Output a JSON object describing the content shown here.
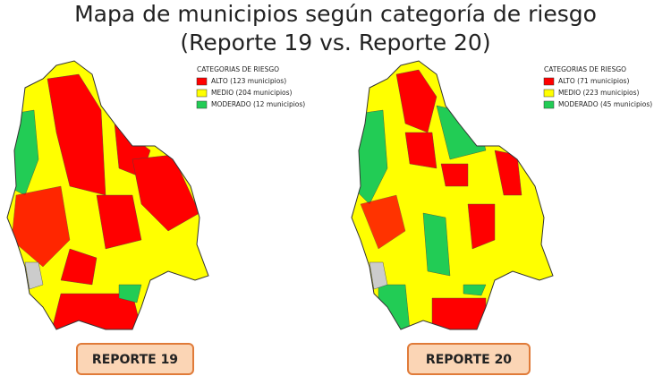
{
  "title": [
    "Mapa de municipios según categoría de riesgo",
    "(Reporte 19 vs. Reporte 20)"
  ],
  "maps": [
    {
      "legend": {
        "title": "CATEGORIAS DE RIESGO",
        "items": [
          {
            "label": "ALTO (123 municipios)",
            "color": "#ff0000"
          },
          {
            "label": "MEDIO (204 municipios)",
            "color": "#ffff00"
          },
          {
            "label": "MODERADO (12 municipios)",
            "color": "#22cc55"
          }
        ]
      },
      "label": "REPORTE 19"
    },
    {
      "legend": {
        "title": "CATEGORIAS DE RIESGO",
        "items": [
          {
            "label": "ALTO (71 municipios)",
            "color": "#ff0000"
          },
          {
            "label": "MEDIO (223 municipios)",
            "color": "#ffff00"
          },
          {
            "label": "MODERADO (45 municipios)",
            "color": "#22cc55"
          }
        ]
      },
      "label": "REPORTE 20"
    }
  ]
}
